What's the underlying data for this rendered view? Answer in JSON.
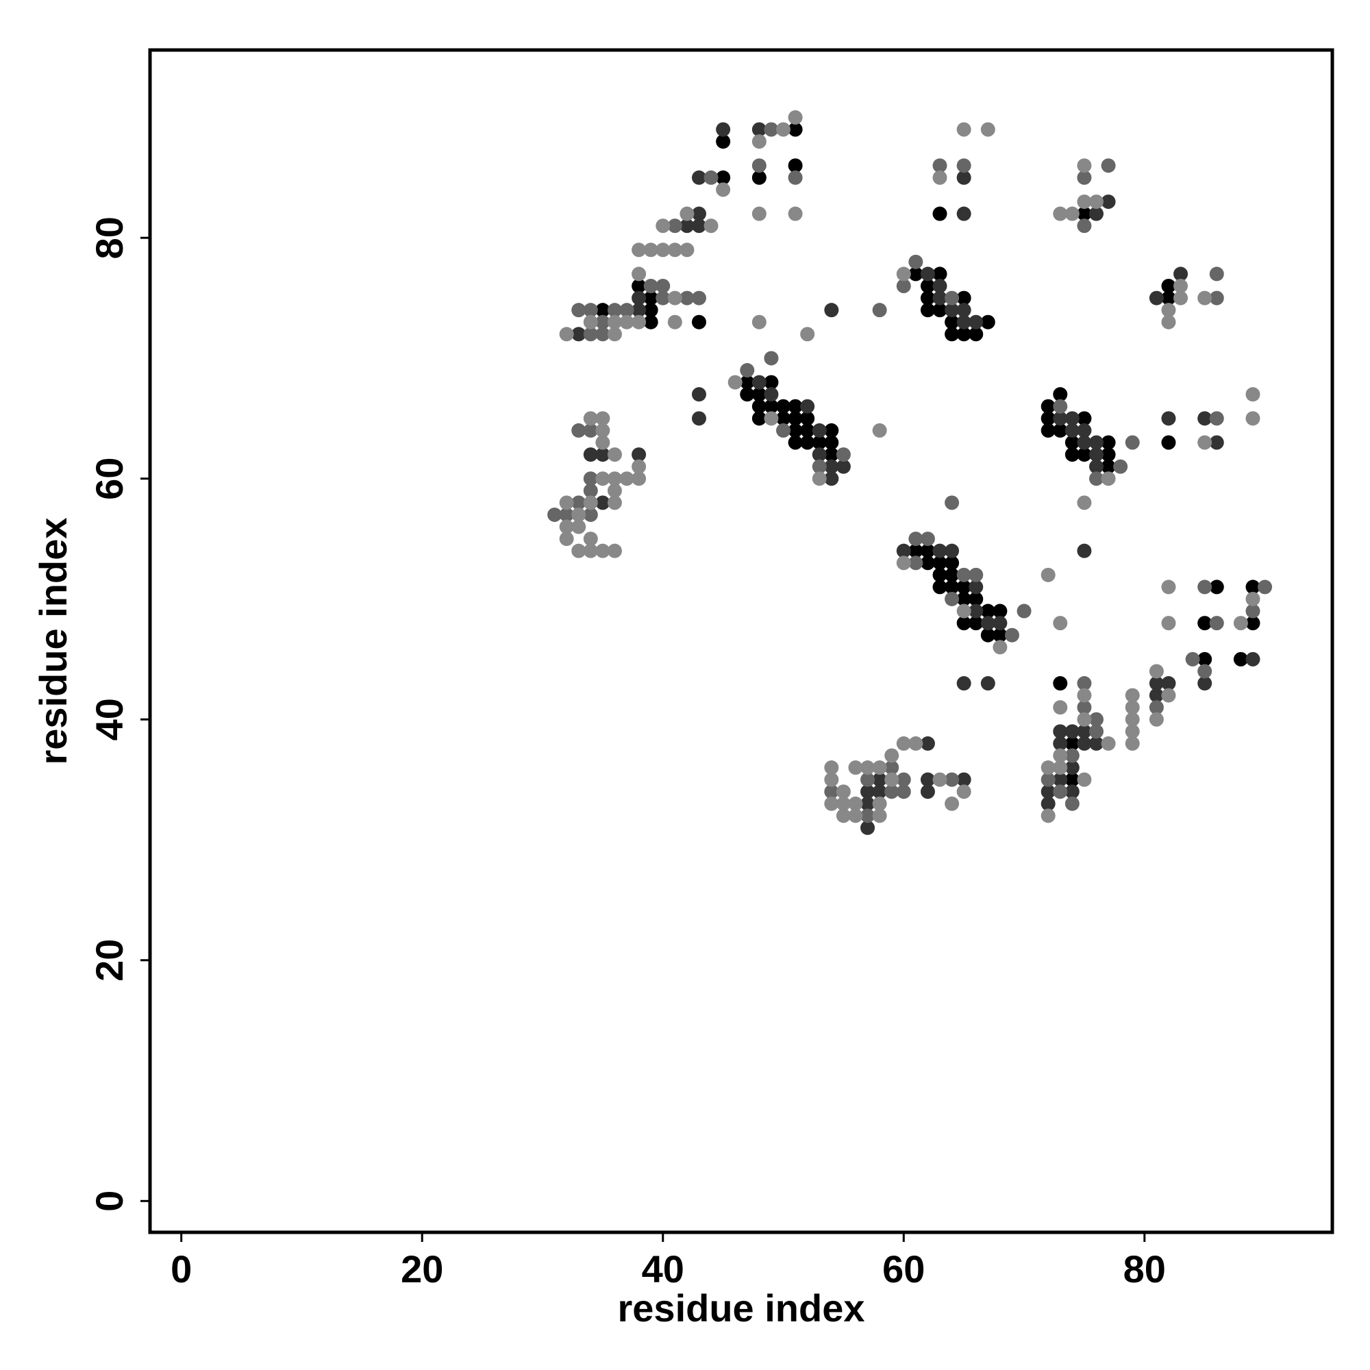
{
  "chart_data": {
    "type": "scatter",
    "xlabel": "residue index",
    "ylabel": "residue index",
    "xlim": [
      -2.6,
      95.6
    ],
    "ylim": [
      -2.6,
      95.6
    ],
    "xticks": [
      0,
      20,
      40,
      60,
      80
    ],
    "yticks": [
      0,
      20,
      40,
      60,
      80
    ],
    "series": [
      {
        "color": "#000000",
        "x": [
          51,
          45,
          51,
          45,
          48,
          63,
          75,
          61,
          63,
          38,
          62,
          82,
          39,
          62,
          65,
          82,
          35,
          39,
          62,
          63,
          39,
          43,
          64,
          67,
          64,
          65,
          66,
          47,
          49,
          47,
          48,
          73,
          48,
          49,
          50,
          51,
          72,
          48,
          50,
          51,
          52,
          72,
          75,
          51,
          52,
          54,
          72,
          73,
          51,
          52,
          53,
          54,
          74,
          77,
          82,
          54,
          74,
          75,
          77,
          77,
          61,
          62,
          62,
          63,
          64,
          63,
          64,
          63,
          64,
          65,
          86,
          89,
          65,
          66,
          67,
          68,
          65,
          66,
          85,
          89,
          67,
          68,
          85,
          88,
          73,
          74,
          74
        ],
        "y": [
          89,
          88,
          86,
          85,
          85,
          82,
          82,
          77,
          77,
          76,
          76,
          76,
          75,
          75,
          75,
          75,
          74,
          74,
          74,
          74,
          73,
          73,
          73,
          73,
          72,
          72,
          72,
          68,
          68,
          67,
          67,
          67,
          66,
          66,
          66,
          66,
          66,
          65,
          65,
          65,
          65,
          65,
          65,
          64,
          64,
          64,
          64,
          64,
          63,
          63,
          63,
          63,
          63,
          63,
          63,
          62,
          62,
          62,
          62,
          61,
          54,
          54,
          53,
          53,
          53,
          52,
          52,
          51,
          51,
          51,
          51,
          51,
          50,
          50,
          49,
          49,
          48,
          48,
          48,
          48,
          47,
          47,
          45,
          45,
          43,
          38,
          35
        ]
      },
      {
        "color": "#333333",
        "x": [
          45,
          48,
          65,
          43,
          77,
          43,
          65,
          76,
          42,
          43,
          62,
          83,
          63,
          38,
          63,
          81,
          38,
          54,
          64,
          65,
          65,
          66,
          33,
          48,
          43,
          49,
          52,
          43,
          73,
          74,
          82,
          85,
          53,
          74,
          75,
          75,
          76,
          86,
          34,
          35,
          38,
          53,
          76,
          54,
          55,
          76,
          54,
          35,
          60,
          63,
          64,
          75,
          66,
          66,
          67,
          68,
          89,
          65,
          67,
          81,
          82,
          85,
          81,
          73,
          74,
          75,
          62,
          73,
          75,
          76,
          74,
          58,
          62,
          65,
          73,
          57,
          58,
          62,
          72,
          74,
          57,
          72,
          57
        ],
        "y": [
          89,
          89,
          85,
          85,
          83,
          82,
          82,
          82,
          81,
          81,
          77,
          77,
          76,
          75,
          75,
          75,
          74,
          74,
          74,
          74,
          73,
          73,
          72,
          68,
          67,
          67,
          66,
          65,
          65,
          65,
          65,
          65,
          64,
          64,
          64,
          63,
          63,
          63,
          62,
          62,
          62,
          62,
          62,
          61,
          61,
          61,
          60,
          58,
          54,
          54,
          54,
          54,
          51,
          49,
          48,
          48,
          45,
          43,
          43,
          43,
          43,
          43,
          42,
          39,
          39,
          39,
          38,
          38,
          38,
          38,
          36,
          35,
          35,
          35,
          35,
          34,
          34,
          34,
          34,
          34,
          33,
          33,
          31
        ]
      },
      {
        "color": "#666666",
        "x": [
          49,
          48,
          63,
          65,
          77,
          44,
          51,
          75,
          41,
          75,
          61,
          86,
          39,
          40,
          60,
          40,
          42,
          43,
          64,
          86,
          33,
          34,
          36,
          37,
          58,
          35,
          34,
          35,
          49,
          47,
          73,
          86,
          33,
          34,
          50,
          79,
          55,
          53,
          78,
          34,
          76,
          34,
          33,
          64,
          31,
          32,
          34,
          61,
          62,
          61,
          65,
          66,
          85,
          90,
          64,
          70,
          89,
          86,
          69,
          84,
          85,
          75,
          75,
          81,
          76,
          76,
          74,
          59,
          57,
          60,
          64,
          72,
          54,
          59,
          60,
          73,
          74,
          57
        ],
        "y": [
          89,
          86,
          86,
          86,
          86,
          85,
          85,
          85,
          81,
          81,
          78,
          77,
          76,
          76,
          76,
          75,
          75,
          75,
          75,
          75,
          74,
          74,
          74,
          74,
          74,
          73,
          72,
          72,
          70,
          69,
          66,
          65,
          64,
          64,
          64,
          63,
          62,
          61,
          61,
          60,
          60,
          59,
          58,
          58,
          57,
          57,
          57,
          55,
          55,
          53,
          52,
          52,
          51,
          51,
          50,
          49,
          49,
          48,
          47,
          45,
          44,
          43,
          41,
          41,
          40,
          39,
          37,
          36,
          35,
          35,
          35,
          35,
          34,
          34,
          34,
          34,
          33,
          32
        ]
      },
      {
        "color": "#888888",
        "x": [
          51,
          50,
          65,
          67,
          48,
          75,
          63,
          45,
          75,
          76,
          42,
          48,
          51,
          73,
          74,
          40,
          44,
          38,
          39,
          40,
          41,
          42,
          38,
          60,
          83,
          41,
          83,
          85,
          82,
          34,
          36,
          37,
          38,
          41,
          48,
          82,
          32,
          36,
          52,
          46,
          89,
          34,
          35,
          49,
          89,
          35,
          58,
          35,
          85,
          36,
          38,
          35,
          36,
          37,
          38,
          53,
          77,
          36,
          32,
          34,
          36,
          75,
          33,
          32,
          33,
          32,
          34,
          33,
          34,
          35,
          36,
          60,
          72,
          82,
          89,
          65,
          73,
          82,
          88,
          68,
          81,
          75,
          79,
          82,
          73,
          79,
          75,
          79,
          81,
          79,
          60,
          61,
          77,
          79,
          59,
          73,
          54,
          56,
          57,
          58,
          72,
          73,
          54,
          59,
          63,
          75,
          55,
          65,
          54,
          55,
          56,
          58,
          64,
          55,
          56,
          58,
          72
        ],
        "y": [
          90,
          89,
          89,
          89,
          88,
          86,
          85,
          84,
          83,
          83,
          82,
          82,
          82,
          82,
          82,
          81,
          81,
          79,
          79,
          79,
          79,
          79,
          77,
          77,
          76,
          75,
          75,
          75,
          74,
          73,
          73,
          73,
          73,
          73,
          73,
          73,
          72,
          72,
          72,
          68,
          67,
          65,
          65,
          65,
          65,
          64,
          64,
          63,
          63,
          62,
          61,
          60,
          60,
          60,
          60,
          60,
          60,
          59,
          58,
          58,
          58,
          58,
          57,
          56,
          56,
          55,
          55,
          54,
          54,
          54,
          54,
          53,
          52,
          51,
          50,
          49,
          48,
          48,
          48,
          46,
          44,
          42,
          42,
          42,
          41,
          41,
          40,
          40,
          40,
          39,
          38,
          38,
          38,
          38,
          37,
          37,
          36,
          36,
          36,
          36,
          36,
          36,
          35,
          35,
          35,
          35,
          34,
          34,
          33,
          33,
          33,
          33,
          33,
          32,
          32,
          32,
          32
        ]
      }
    ]
  }
}
